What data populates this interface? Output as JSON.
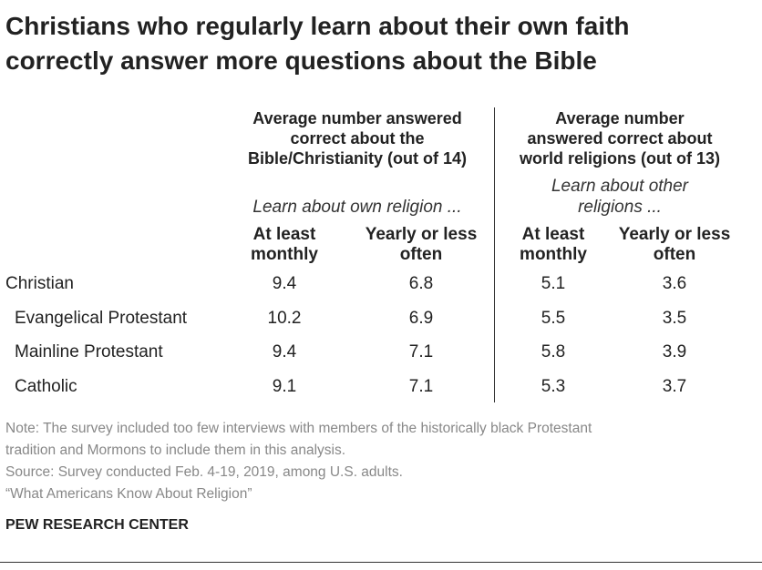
{
  "title": [
    "Christians who regularly learn about their own faith",
    "correctly answer more questions about the Bible"
  ],
  "table": {
    "groups": [
      {
        "header": [
          "Average number answered",
          "correct about the",
          "Bible/Christianity (out of 14)"
        ],
        "subheader": [
          "Learn about own religion ..."
        ]
      },
      {
        "header": [
          "Average number",
          "answered correct about",
          "world religions (out of 13)"
        ],
        "subheader": [
          "Learn about other",
          "religions ..."
        ]
      }
    ],
    "columns": [
      [
        "At least",
        "monthly"
      ],
      [
        "Yearly or less",
        "often"
      ],
      [
        "At least",
        "monthly"
      ],
      [
        "Yearly or less",
        "often"
      ]
    ],
    "rows": [
      {
        "label": "Christian",
        "values": [
          9.4,
          6.8,
          5.1,
          3.6
        ]
      },
      {
        "label": "Evangelical Protestant",
        "values": [
          10.2,
          6.9,
          5.5,
          3.5
        ]
      },
      {
        "label": "Mainline Protestant",
        "values": [
          9.4,
          7.1,
          5.8,
          3.9
        ]
      },
      {
        "label": "Catholic",
        "values": [
          9.1,
          7.1,
          5.3,
          3.7
        ]
      }
    ]
  },
  "notes": [
    "Note: The survey included too few interviews with members of the historically black Protestant",
    "tradition and Mormons to include them in this analysis.",
    "Source: Survey conducted Feb. 4-19, 2019, among U.S. adults.",
    "“What Americans Know About Religion”"
  ],
  "footer": "PEW RESEARCH CENTER"
}
